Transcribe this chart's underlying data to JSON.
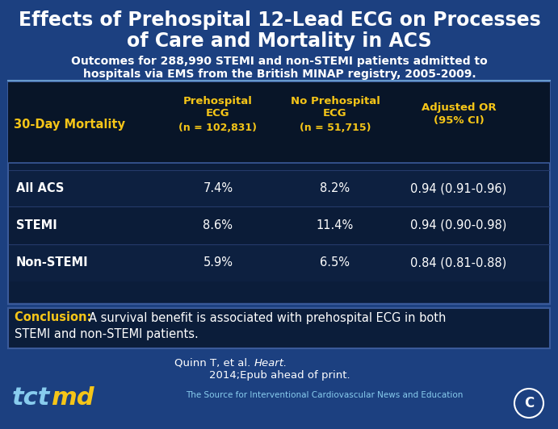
{
  "title_line1": "Effects of Prehospital 12-Lead ECG on Processes",
  "title_line2": "of Care and Mortality in ACS",
  "subtitle_line1": "Outcomes for 288,990 STEMI and non-STEMI patients admitted to",
  "subtitle_line2": "hospitals via EMS from the British MINAP registry, 2005-2009.",
  "col_header1_l1": "Prehospital",
  "col_header1_l2": "ECG",
  "col_header1_l3": "(n = 102,831)",
  "col_header2_l1": "No Prehospital",
  "col_header2_l2": "ECG",
  "col_header2_l3": "(n = 51,715)",
  "col_header3_l1": "Adjusted OR",
  "col_header3_l2": "(95% CI)",
  "row_header": "30-Day Mortality",
  "rows": [
    {
      "label": "All ACS",
      "c1": "7.4%",
      "c2": "8.2%",
      "c3": "0.94 (0.91-0.96)"
    },
    {
      "label": "STEMI",
      "c1": "8.6%",
      "c2": "11.4%",
      "c3": "0.94 (0.90-0.98)"
    },
    {
      "label": "Non-STEMI",
      "c1": "5.9%",
      "c2": "6.5%",
      "c3": "0.84 (0.81-0.88)"
    }
  ],
  "conclusion_bold": "Conclusion: ",
  "conclusion_rest_l1": " A survival benefit is associated with prehospital ECG in both",
  "conclusion_rest_l2": "STEMI and non-STEMI patients.",
  "citation_regular": "Quinn T, et al. ",
  "citation_italic": "Heart.",
  "citation_line2": "2014;Epub ahead of print.",
  "footer": "The Source for Interventional Cardiovascular News and Education",
  "bg_blue": "#1c4080",
  "bg_medium": "#1a3a70",
  "table_dark": "#0b1d3a",
  "table_header_dark": "#081528",
  "conclusion_dark": "#0b1d3a",
  "yellow": "#f5c518",
  "white": "#ffffff",
  "tct_cyan": "#88ccee",
  "border_blue": "#3a5a9a",
  "fig_w": 6.91,
  "fig_h": 5.32,
  "dpi": 100
}
